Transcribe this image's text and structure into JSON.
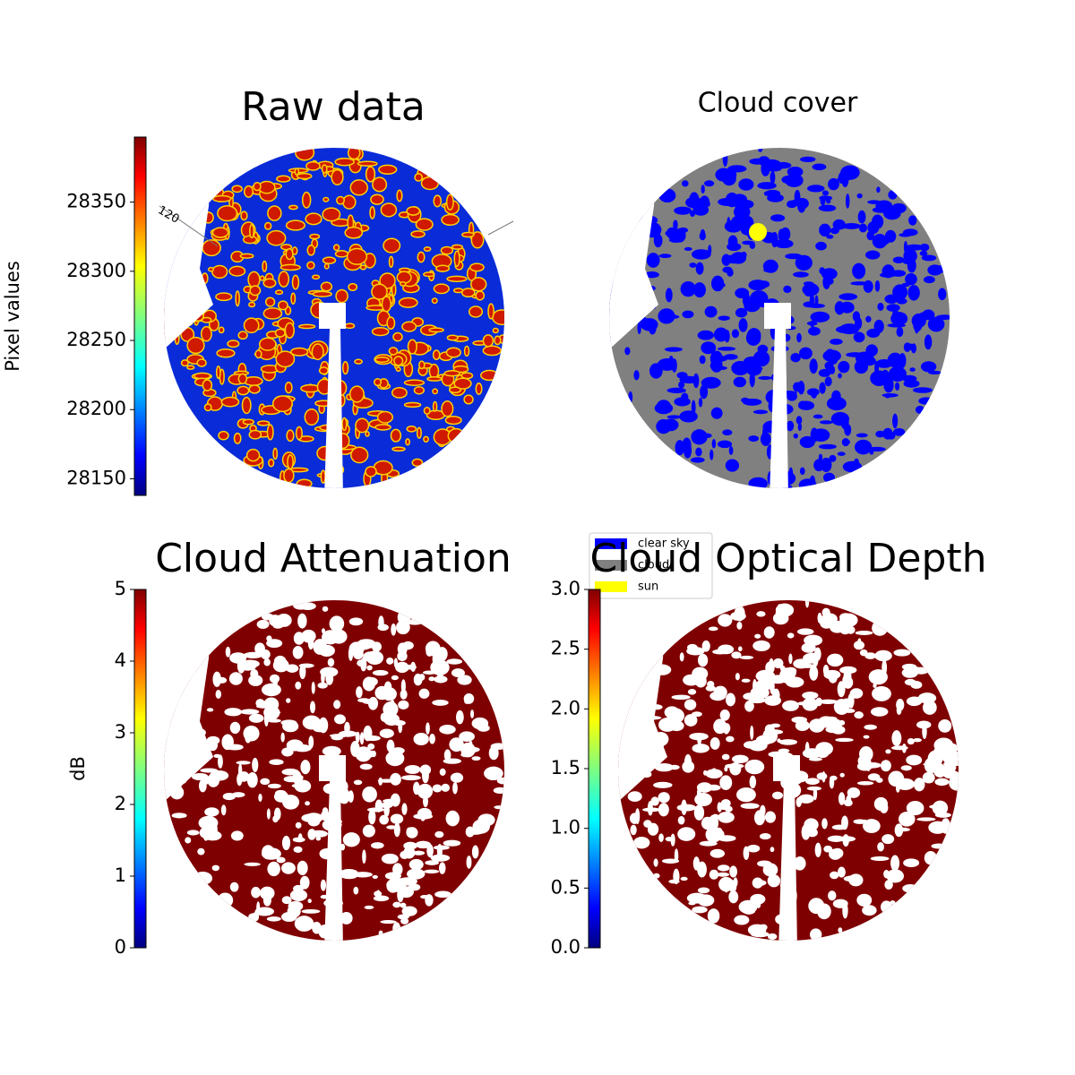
{
  "chart_data": [
    {
      "type": "image",
      "title": "Raw data",
      "colormap": "jet",
      "colorbar_label": "Pixel values",
      "ylim": [
        28138,
        28397
      ],
      "yticks": [
        28150,
        28200,
        28250,
        28300,
        28350
      ],
      "annotation": "120"
    },
    {
      "type": "image",
      "title": "Cloud cover",
      "legend": [
        {
          "name": "clear sky",
          "color": "#0000ff"
        },
        {
          "name": "cloud",
          "color": "#808080"
        },
        {
          "name": "sun",
          "color": "#ffff00"
        }
      ]
    },
    {
      "type": "image",
      "title": "Cloud Attenuation",
      "colormap": "jet",
      "colorbar_label": "dB",
      "ylim": [
        0,
        5
      ],
      "yticks": [
        0,
        1,
        2,
        3,
        4,
        5
      ]
    },
    {
      "type": "image",
      "title": "Cloud Optical Depth",
      "colormap": "jet",
      "ylim": [
        0,
        3
      ],
      "yticks": [
        {
          "value": 0,
          "label": "0.0"
        },
        0.5,
        {
          "value": 1,
          "label": "1.0"
        },
        1.5,
        {
          "value": 2,
          "label": "2.0"
        },
        2.5,
        {
          "value": 3,
          "label": "3.0"
        }
      ]
    }
  ]
}
